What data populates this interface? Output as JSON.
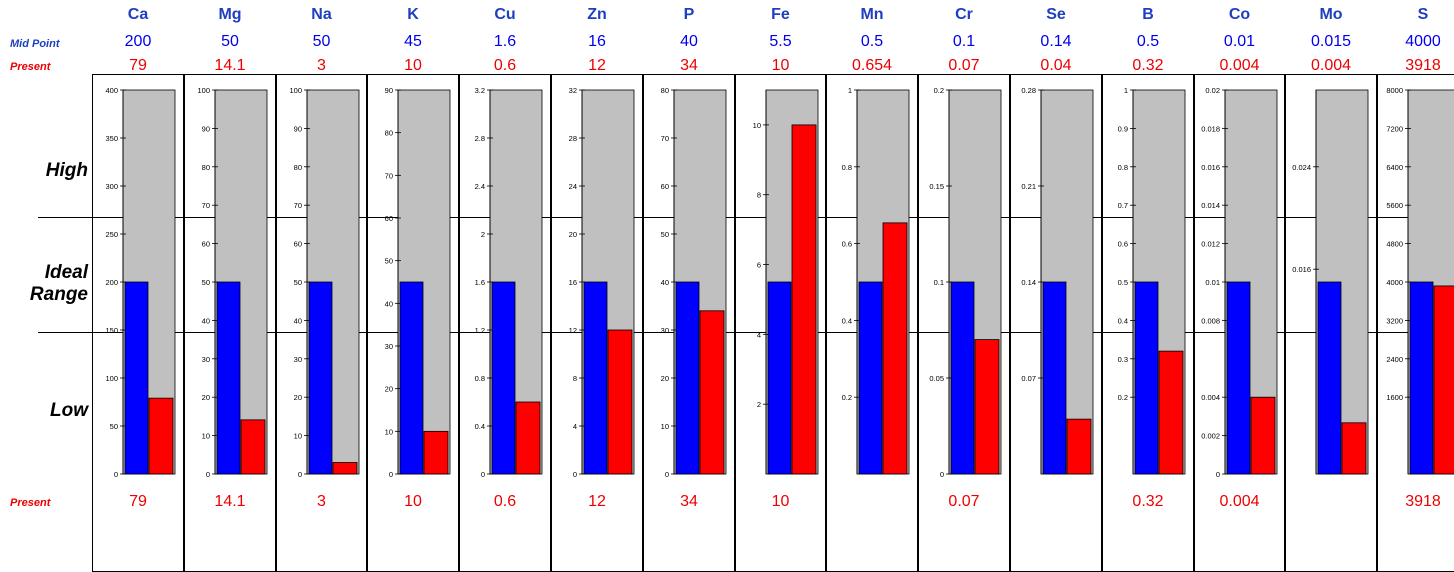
{
  "row_labels": {
    "mid_point": "Mid Point",
    "present_top": "Present",
    "present_bottom": "Present"
  },
  "band_labels": {
    "high": "High",
    "ideal": "Ideal Range",
    "low": "Low"
  },
  "colors": {
    "mid_bar": "#0000ff",
    "present_bar": "#ff0000",
    "background_bar": "#c0c0c0",
    "name_text": "#1f3fbf",
    "mid_text": "#0000ee",
    "present_text": "#ee0000"
  },
  "chart_data": {
    "type": "bar",
    "title": "",
    "categories": [
      "Ca",
      "Mg",
      "Na",
      "K",
      "Cu",
      "Zn",
      "P",
      "Fe",
      "Mn",
      "Cr",
      "Se",
      "B",
      "Co",
      "Mo",
      "S"
    ],
    "series": [
      {
        "name": "Mid Point",
        "values": [
          200,
          50,
          50,
          45,
          1.6,
          16,
          40,
          5.5,
          0.5,
          0.1,
          0.14,
          0.5,
          0.01,
          0.015,
          4000
        ]
      },
      {
        "name": "Present",
        "values": [
          79,
          14.1,
          3,
          10,
          0.6,
          12,
          34,
          10,
          0.654,
          0.07,
          0.04,
          0.32,
          0.004,
          0.004,
          3918
        ]
      }
    ],
    "elements": [
      {
        "name": "Ca",
        "mid_label": "200",
        "present_label": "79",
        "present_bottom_label": "79",
        "mid": 200,
        "present": 79,
        "ymax": 400,
        "ticks": [
          0,
          50,
          100,
          150,
          200,
          250,
          300,
          350,
          400
        ],
        "tick_labels": [
          "0",
          "50",
          "100",
          "150",
          "200",
          "250",
          "300",
          "350",
          "400"
        ]
      },
      {
        "name": "Mg",
        "mid_label": "50",
        "present_label": "14.1",
        "present_bottom_label": "14.1",
        "mid": 50,
        "present": 14.1,
        "ymax": 100,
        "ticks": [
          0,
          10,
          20,
          30,
          40,
          50,
          60,
          70,
          80,
          90,
          100
        ],
        "tick_labels": [
          "0",
          "10",
          "20",
          "30",
          "40",
          "50",
          "60",
          "70",
          "80",
          "90",
          "100"
        ]
      },
      {
        "name": "Na",
        "mid_label": "50",
        "present_label": "3",
        "present_bottom_label": "3",
        "mid": 50,
        "present": 3,
        "ymax": 100,
        "ticks": [
          0,
          10,
          20,
          30,
          40,
          50,
          60,
          70,
          80,
          90,
          100
        ],
        "tick_labels": [
          "0",
          "10",
          "20",
          "30",
          "40",
          "50",
          "60",
          "70",
          "80",
          "90",
          "100"
        ]
      },
      {
        "name": "K",
        "mid_label": "45",
        "present_label": "10",
        "present_bottom_label": "10",
        "mid": 45,
        "present": 10,
        "ymax": 90,
        "ticks": [
          0,
          10,
          20,
          30,
          40,
          50,
          60,
          70,
          80,
          90
        ],
        "tick_labels": [
          "0",
          "10",
          "20",
          "30",
          "40",
          "50",
          "60",
          "70",
          "80",
          "90"
        ]
      },
      {
        "name": "Cu",
        "mid_label": "1.6",
        "present_label": "0.6",
        "present_bottom_label": "0.6",
        "mid": 1.6,
        "present": 0.6,
        "ymax": 3.2,
        "ticks": [
          0,
          0.4,
          0.8,
          1.2,
          1.6,
          2,
          2.4,
          2.8,
          3.2
        ],
        "tick_labels": [
          "0",
          "0.4",
          "0.8",
          "1.2",
          "1.6",
          "2",
          "2.4",
          "2.8",
          "3.2"
        ]
      },
      {
        "name": "Zn",
        "mid_label": "16",
        "present_label": "12",
        "present_bottom_label": "12",
        "mid": 16,
        "present": 12,
        "ymax": 32,
        "ticks": [
          0,
          4,
          8,
          12,
          16,
          20,
          24,
          28,
          32
        ],
        "tick_labels": [
          "0",
          "4",
          "8",
          "12",
          "16",
          "20",
          "24",
          "28",
          "32"
        ]
      },
      {
        "name": "P",
        "mid_label": "40",
        "present_label": "34",
        "present_bottom_label": "34",
        "mid": 40,
        "present": 34,
        "ymax": 80,
        "ticks": [
          0,
          10,
          20,
          30,
          40,
          50,
          60,
          70,
          80
        ],
        "tick_labels": [
          "0",
          "10",
          "20",
          "30",
          "40",
          "50",
          "60",
          "70",
          "80"
        ]
      },
      {
        "name": "Fe",
        "mid_label": "5.5",
        "present_label": "10",
        "present_bottom_label": "10",
        "mid": 5.5,
        "present": 10,
        "ymax": 11,
        "ticks": [
          2,
          4,
          6,
          8,
          10
        ],
        "tick_labels": [
          "2",
          "4",
          "6",
          "8",
          "10"
        ]
      },
      {
        "name": "Mn",
        "mid_label": "0.5",
        "present_label": "0.654",
        "present_bottom_label": "",
        "mid": 0.5,
        "present": 0.654,
        "ymax": 1,
        "ticks": [
          0.2,
          0.4,
          0.6,
          0.8,
          1
        ],
        "tick_labels": [
          "0.2",
          "0.4",
          "0.6",
          "0.8",
          "1"
        ]
      },
      {
        "name": "Cr",
        "mid_label": "0.1",
        "present_label": "0.07",
        "present_bottom_label": "0.07",
        "mid": 0.1,
        "present": 0.07,
        "ymax": 0.2,
        "ticks": [
          0,
          0.05,
          0.1,
          0.15,
          0.2
        ],
        "tick_labels": [
          "0",
          "0.05",
          "0.1",
          "0.15",
          "0.2"
        ]
      },
      {
        "name": "Se",
        "mid_label": "0.14",
        "present_label": "0.04",
        "present_bottom_label": "",
        "mid": 0.14,
        "present": 0.04,
        "ymax": 0.28,
        "ticks": [
          0.07,
          0.14,
          0.21,
          0.28
        ],
        "tick_labels": [
          "0.07",
          "0.14",
          "0.21",
          "0.28"
        ]
      },
      {
        "name": "B",
        "mid_label": "0.5",
        "present_label": "0.32",
        "present_bottom_label": "0.32",
        "mid": 0.5,
        "present": 0.32,
        "ymax": 1,
        "ticks": [
          0.2,
          0.3,
          0.4,
          0.5,
          0.6,
          0.7,
          0.8,
          0.9,
          1
        ],
        "tick_labels": [
          "0.2",
          "0.3",
          "0.4",
          "0.5",
          "0.6",
          "0.7",
          "0.8",
          "0.9",
          "1"
        ]
      },
      {
        "name": "Co",
        "mid_label": "0.01",
        "present_label": "0.004",
        "present_bottom_label": "0.004",
        "mid": 0.01,
        "present": 0.004,
        "ymax": 0.02,
        "ticks": [
          0,
          0.002,
          0.004,
          0.008,
          0.01,
          0.012,
          0.014,
          0.016,
          0.018,
          0.02
        ],
        "tick_labels": [
          "0",
          "0.002",
          "0.004",
          "0.008",
          "0.01",
          "0.012",
          "0.014",
          "0.016",
          "0.018",
          "0.02"
        ]
      },
      {
        "name": "Mo",
        "mid_label": "0.015",
        "present_label": "0.004",
        "present_bottom_label": "",
        "mid": 0.015,
        "present": 0.004,
        "ymax": 0.03,
        "ticks": [
          0.016,
          0.024
        ],
        "tick_labels": [
          "0.016",
          "0.024"
        ]
      },
      {
        "name": "S",
        "mid_label": "4000",
        "present_label": "3918",
        "present_bottom_label": "3918",
        "mid": 4000,
        "present": 3918,
        "ymax": 8000,
        "ticks": [
          1600,
          2400,
          3200,
          4000,
          4800,
          5600,
          6400,
          7200,
          8000
        ],
        "tick_labels": [
          "1600",
          "2400",
          "3200",
          "4000",
          "4800",
          "5600",
          "6400",
          "7200",
          "8000"
        ]
      }
    ]
  }
}
